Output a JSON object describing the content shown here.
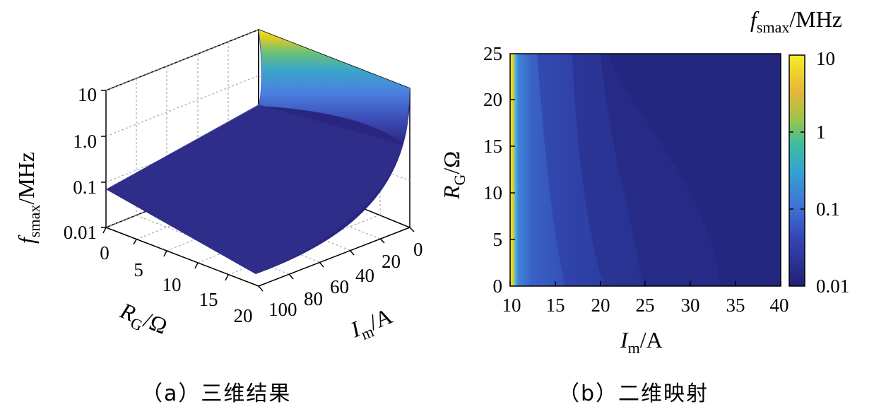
{
  "captions": {
    "a": "（a）三维结果",
    "b": "（b）二维映射"
  },
  "colors": {
    "low": "#2a2680",
    "mid": "#3f74d6",
    "high": "#f2e11d"
  },
  "chart_data": [
    {
      "type": "surface",
      "zlabel_main": "f",
      "zlabel_sub": "smax",
      "zlabel_unit": "/MHz",
      "xlabel_main": "R",
      "xlabel_sub": "G",
      "xlabel_unit": "/Ω",
      "ylabel_main": "I",
      "ylabel_sub": "m",
      "ylabel_unit": "/A",
      "x_ticks": [
        "0",
        "5",
        "10",
        "15",
        "20"
      ],
      "y_ticks": [
        "0",
        "20",
        "40",
        "60",
        "80",
        "100"
      ],
      "z_ticks": [
        "0.01",
        "0.1",
        "1.0",
        "10"
      ],
      "z_scale": "log",
      "xlim": [
        0,
        20
      ],
      "ylim": [
        0,
        100
      ],
      "zlim": [
        0.01,
        10
      ],
      "grid": true
    },
    {
      "type": "heatmap",
      "xlabel_main": "I",
      "xlabel_sub": "m",
      "xlabel_unit": "/A",
      "ylabel_main": "R",
      "ylabel_sub": "G",
      "ylabel_unit": "/Ω",
      "x_ticks": [
        "10",
        "15",
        "20",
        "25",
        "30",
        "35",
        "40"
      ],
      "y_ticks": [
        "0",
        "5",
        "10",
        "15",
        "20",
        "25"
      ],
      "xlim": [
        10,
        40
      ],
      "ylim": [
        0,
        25
      ],
      "colorbar_title_main": "f",
      "colorbar_title_sub": "smax",
      "colorbar_title_unit": "/MHz",
      "colorbar_ticks": [
        "10",
        "1",
        "0.1",
        "0.01"
      ],
      "colorbar_scale": "log",
      "colorbar_range": [
        0.01,
        10
      ]
    }
  ]
}
